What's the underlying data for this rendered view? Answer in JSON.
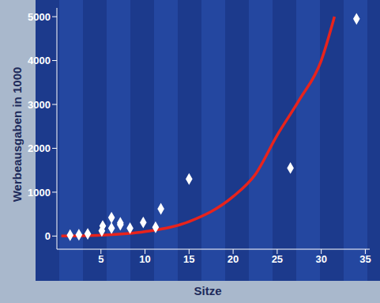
{
  "chart_data": {
    "type": "scatter",
    "x_label": "Sitze",
    "y_label": "Werbeausgaben in 1000",
    "xlim": [
      0,
      35.5
    ],
    "xticks": [
      5,
      10,
      15,
      20,
      25,
      30,
      35
    ],
    "ylim": [
      -300,
      5200
    ],
    "yticks": [
      0,
      1000,
      2000,
      3000,
      4000,
      5000
    ],
    "grid": false,
    "series": [
      {
        "type": "scatter",
        "color": "#ffffff",
        "marker": "diamond",
        "x": [
          1.5,
          2.5,
          3.5,
          5.1,
          5.2,
          6.2,
          6.2,
          7.2,
          7.2,
          8.3,
          9.8,
          11.2,
          11.8,
          15,
          26.5,
          34
        ],
        "values": [
          20,
          30,
          50,
          120,
          230,
          180,
          420,
          300,
          260,
          180,
          310,
          200,
          620,
          1300,
          1550,
          4950
        ]
      },
      {
        "type": "line",
        "color": "#e8231c",
        "x": [
          0.5,
          5,
          10,
          15,
          20,
          22.5,
          25,
          27.5,
          30,
          31.5
        ],
        "values": [
          0,
          20,
          100,
          330,
          900,
          1400,
          2300,
          3100,
          4000,
          5000
        ]
      }
    ]
  }
}
